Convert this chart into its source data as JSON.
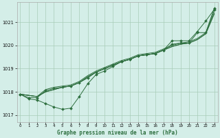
{
  "title": "Graphe pression niveau de la mer (hPa)",
  "background_color": "#d4eee8",
  "line_color": "#2d6e3e",
  "grid_color": "#a8ccb8",
  "ylim": [
    1016.7,
    1021.85
  ],
  "xlim": [
    -0.4,
    23.4
  ],
  "yticks": [
    1017,
    1018,
    1019,
    1020,
    1021
  ],
  "xticks": [
    0,
    1,
    2,
    3,
    4,
    5,
    6,
    7,
    8,
    9,
    10,
    11,
    12,
    13,
    14,
    15,
    16,
    17,
    18,
    19,
    20,
    21,
    22,
    23
  ],
  "smooth_lines": [
    [
      1017.9,
      1017.85,
      1017.8,
      1018.1,
      1018.2,
      1018.25,
      1018.3,
      1018.45,
      1018.7,
      1018.9,
      1019.05,
      1019.2,
      1019.35,
      1019.45,
      1019.6,
      1019.65,
      1019.7,
      1019.85,
      1020.0,
      1020.1,
      1020.15,
      1020.3,
      1020.55,
      1021.5
    ],
    [
      1017.9,
      1017.85,
      1017.8,
      1018.0,
      1018.1,
      1018.2,
      1018.25,
      1018.4,
      1018.65,
      1018.85,
      1019.0,
      1019.15,
      1019.3,
      1019.4,
      1019.55,
      1019.6,
      1019.65,
      1019.8,
      1019.95,
      1020.05,
      1020.1,
      1020.25,
      1020.5,
      1021.4
    ],
    [
      1017.9,
      1017.85,
      1017.8,
      1018.0,
      1018.1,
      1018.2,
      1018.25,
      1018.4,
      1018.65,
      1018.85,
      1019.0,
      1019.15,
      1019.3,
      1019.4,
      1019.55,
      1019.6,
      1019.65,
      1019.8,
      1019.95,
      1020.05,
      1020.1,
      1020.25,
      1020.5,
      1021.35
    ]
  ],
  "marked_line_upper": [
    1017.9,
    1017.75,
    1017.75,
    1018.05,
    1018.15,
    1018.2,
    1018.25,
    1018.4,
    1018.6,
    1018.85,
    1019.0,
    1019.15,
    1019.3,
    1019.4,
    1019.55,
    1019.6,
    1019.65,
    1019.8,
    1020.2,
    1020.2,
    1020.2,
    1020.6,
    1021.05,
    1021.55
  ],
  "marked_line_lower": [
    1017.9,
    1017.7,
    1017.65,
    1017.5,
    1017.35,
    1017.25,
    1017.3,
    1017.8,
    1018.35,
    1018.75,
    1018.9,
    1019.1,
    1019.3,
    1019.4,
    1019.55,
    1019.6,
    1019.65,
    1019.8,
    1020.05,
    1020.1,
    1020.1,
    1020.55,
    1020.55,
    1021.6
  ]
}
